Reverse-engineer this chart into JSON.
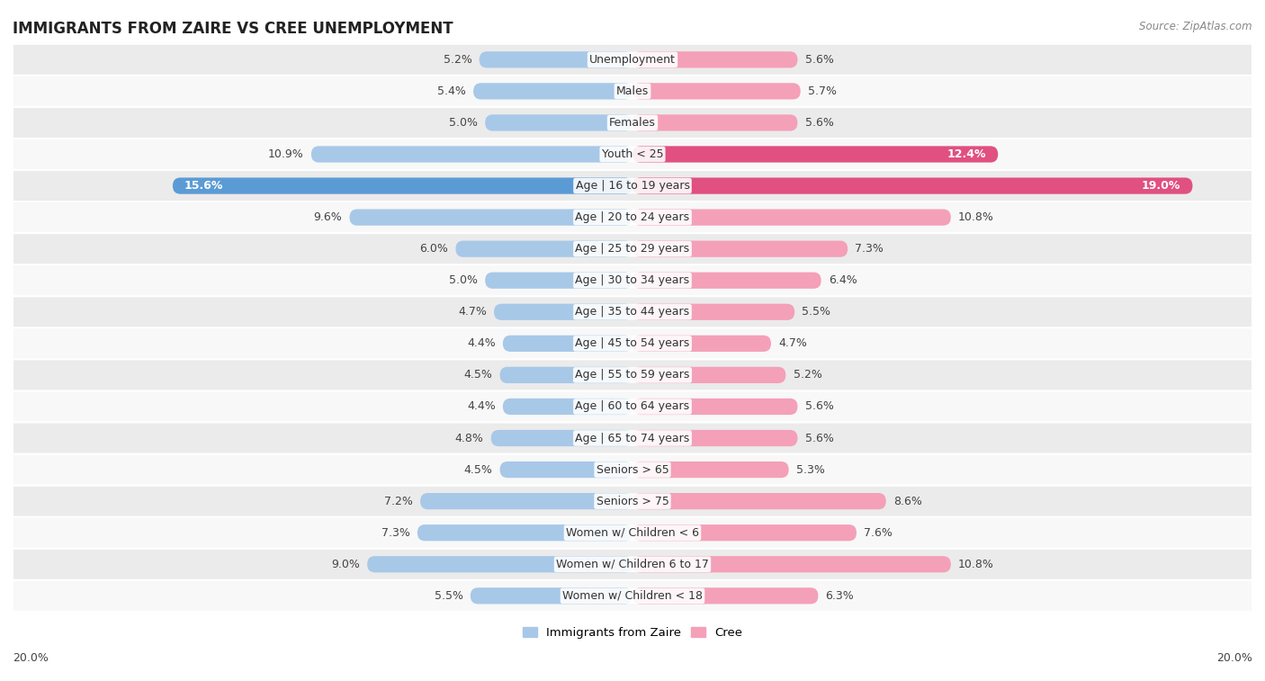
{
  "title": "IMMIGRANTS FROM ZAIRE VS CREE UNEMPLOYMENT",
  "source": "Source: ZipAtlas.com",
  "categories": [
    "Unemployment",
    "Males",
    "Females",
    "Youth < 25",
    "Age | 16 to 19 years",
    "Age | 20 to 24 years",
    "Age | 25 to 29 years",
    "Age | 30 to 34 years",
    "Age | 35 to 44 years",
    "Age | 45 to 54 years",
    "Age | 55 to 59 years",
    "Age | 60 to 64 years",
    "Age | 65 to 74 years",
    "Seniors > 65",
    "Seniors > 75",
    "Women w/ Children < 6",
    "Women w/ Children 6 to 17",
    "Women w/ Children < 18"
  ],
  "zaire_values": [
    5.2,
    5.4,
    5.0,
    10.9,
    15.6,
    9.6,
    6.0,
    5.0,
    4.7,
    4.4,
    4.5,
    4.4,
    4.8,
    4.5,
    7.2,
    7.3,
    9.0,
    5.5
  ],
  "cree_values": [
    5.6,
    5.7,
    5.6,
    12.4,
    19.0,
    10.8,
    7.3,
    6.4,
    5.5,
    4.7,
    5.2,
    5.6,
    5.6,
    5.3,
    8.6,
    7.6,
    10.8,
    6.3
  ],
  "zaire_color_normal": "#a8c8e8",
  "zaire_color_highlight": "#5b9bd5",
  "cree_color_normal": "#f4a0b8",
  "cree_color_highlight": "#e05080",
  "bg_odd": "#ebebeb",
  "bg_even": "#f8f8f8",
  "axis_limit": 20.0,
  "bar_height": 0.52,
  "label_fontsize": 9.0,
  "title_fontsize": 12,
  "legend_fontsize": 9.5,
  "highlight_threshold": 12.0
}
